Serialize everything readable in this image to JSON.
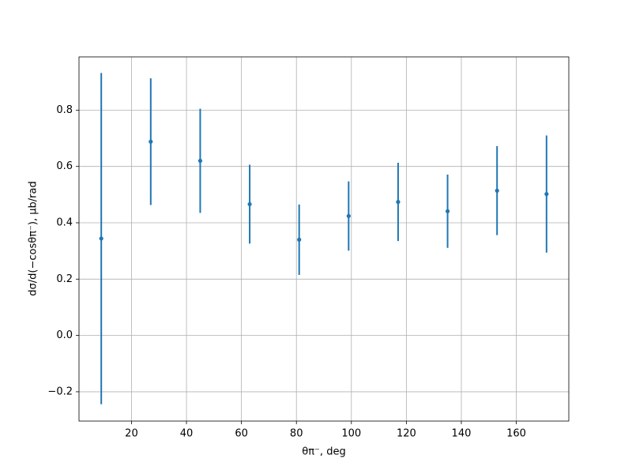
{
  "chart_data": {
    "type": "scatter",
    "xlabel": "θπ⁻, deg",
    "ylabel": "dσ/d(−cosθπ⁻), μb/rad",
    "x": [
      9,
      27,
      45,
      63,
      81,
      99,
      117,
      135,
      153,
      171
    ],
    "series": [
      {
        "color": "#1f77b4",
        "values": [
          0.344,
          0.688,
          0.62,
          0.466,
          0.34,
          0.424,
          0.474,
          0.441,
          0.514,
          0.502
        ],
        "errors": [
          0.588,
          0.225,
          0.185,
          0.14,
          0.125,
          0.123,
          0.139,
          0.13,
          0.158,
          0.208
        ]
      }
    ],
    "xlim": [
      0.9,
      179.1
    ],
    "ylim": [
      -0.304,
      0.989
    ],
    "xticks": [
      20,
      40,
      60,
      80,
      100,
      120,
      140,
      160
    ],
    "yticks": [
      {
        "value": -0.2,
        "label": "−0.2"
      },
      {
        "value": 0,
        "label": "0.0"
      },
      {
        "value": 0.2,
        "label": "0.2"
      },
      {
        "value": 0.4,
        "label": "0.4"
      },
      {
        "value": 0.6,
        "label": "0.6"
      },
      {
        "value": 0.8,
        "label": "0.8"
      }
    ],
    "grid": true
  }
}
